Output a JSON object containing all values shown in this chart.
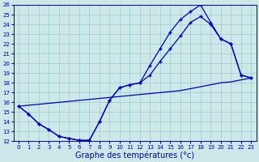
{
  "xlabel": "Graphe des températures (°c)",
  "xlim": [
    -0.5,
    23.5
  ],
  "ylim": [
    12,
    26
  ],
  "xticks": [
    0,
    1,
    2,
    3,
    4,
    5,
    6,
    7,
    8,
    9,
    10,
    11,
    12,
    13,
    14,
    15,
    16,
    17,
    18,
    19,
    20,
    21,
    22,
    23
  ],
  "yticks": [
    12,
    13,
    14,
    15,
    16,
    17,
    18,
    19,
    20,
    21,
    22,
    23,
    24,
    25,
    26
  ],
  "bg_color": "#cce8e8",
  "grid_color": "#99cccc",
  "line_color": "#0000bb",
  "line1_x": [
    0,
    1,
    2,
    3,
    4,
    5,
    6,
    7,
    8,
    9,
    10,
    11,
    12,
    13,
    14,
    15,
    16,
    17,
    18,
    19,
    20,
    21,
    22,
    23
  ],
  "line1_y": [
    15.6,
    14.8,
    13.8,
    13.2,
    12.5,
    12.3,
    12.1,
    12.1,
    14.0,
    16.2,
    17.5,
    17.8,
    18.0,
    19.8,
    21.5,
    23.2,
    24.5,
    25.3,
    26.0,
    24.2,
    22.5,
    22.0,
    18.8,
    18.5
  ],
  "line2_x": [
    0,
    1,
    2,
    3,
    4,
    5,
    6,
    7,
    8,
    9,
    10,
    11,
    12,
    13,
    14,
    15,
    16,
    17,
    18,
    19,
    20,
    21,
    22,
    23
  ],
  "line2_y": [
    15.6,
    14.8,
    13.8,
    13.2,
    12.5,
    12.3,
    12.1,
    12.1,
    14.0,
    16.2,
    17.5,
    17.8,
    18.0,
    18.8,
    20.2,
    21.5,
    22.8,
    24.2,
    24.8,
    24.0,
    22.5,
    22.0,
    18.8,
    18.5
  ],
  "line3_x": [
    0,
    1,
    2,
    3,
    4,
    5,
    6,
    7,
    8,
    9,
    10,
    11,
    12,
    13,
    14,
    15,
    16,
    17,
    18,
    19,
    20,
    21,
    22,
    23
  ],
  "line3_y": [
    15.6,
    15.7,
    15.8,
    15.9,
    16.0,
    16.1,
    16.2,
    16.3,
    16.4,
    16.5,
    16.6,
    16.7,
    16.8,
    16.9,
    17.0,
    17.1,
    17.2,
    17.4,
    17.6,
    17.8,
    18.0,
    18.1,
    18.3,
    18.5
  ],
  "marker": "+",
  "marker_size": 3,
  "linewidth": 0.9,
  "tick_fontsize": 5.0,
  "xlabel_fontsize": 7.0
}
